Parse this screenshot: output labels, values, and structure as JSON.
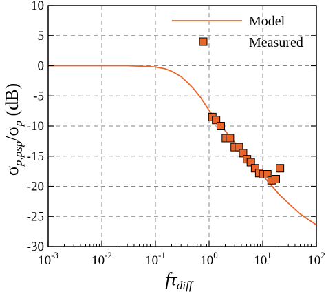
{
  "chart_data": {
    "type": "line",
    "xscale": "log",
    "xlim": [
      0.001,
      100
    ],
    "ylim": [
      -30,
      10
    ],
    "grid": true,
    "legend_position": "top-right",
    "x_ticks": [
      {
        "value": 0.001,
        "base": "10",
        "exp": "-3"
      },
      {
        "value": 0.01,
        "base": "10",
        "exp": "-2"
      },
      {
        "value": 0.1,
        "base": "10",
        "exp": "-1"
      },
      {
        "value": 1,
        "base": "10",
        "exp": "0"
      },
      {
        "value": 10,
        "base": "10",
        "exp": "1"
      },
      {
        "value": 100,
        "base": "10",
        "exp": "2"
      }
    ],
    "y_ticks": [
      {
        "value": 10,
        "label": "10"
      },
      {
        "value": 5,
        "label": "5"
      },
      {
        "value": 0,
        "label": "0"
      },
      {
        "value": -5,
        "label": "-5"
      },
      {
        "value": -10,
        "label": "-10"
      },
      {
        "value": -15,
        "label": "-15"
      },
      {
        "value": -20,
        "label": "-20"
      },
      {
        "value": -25,
        "label": "-25"
      },
      {
        "value": -30,
        "label": "-30"
      }
    ],
    "xlabel": {
      "main": "fτ",
      "sub": "diff"
    },
    "ylabel": {
      "part1": "σ",
      "sub1": "p,psp",
      "part2": "/σ",
      "sub2": "p",
      "unit": " (dB)"
    },
    "series": [
      {
        "name": "Model",
        "kind": "line",
        "color": "#E8662A",
        "x": [
          0.001,
          0.01,
          0.03,
          0.06,
          0.1,
          0.15,
          0.2,
          0.3,
          0.4,
          0.5,
          0.7,
          1,
          1.5,
          2,
          3,
          4,
          5,
          7,
          10,
          15,
          20,
          30,
          50,
          100
        ],
        "y": [
          0,
          0,
          0,
          -0.1,
          -0.2,
          -0.5,
          -0.9,
          -1.8,
          -2.8,
          -3.7,
          -5.3,
          -7.4,
          -9.4,
          -10.8,
          -12.7,
          -14.0,
          -15.0,
          -16.6,
          -18.2,
          -20.0,
          -21.3,
          -22.8,
          -24.6,
          -26.4
        ]
      },
      {
        "name": "Measured",
        "kind": "scatter",
        "color": "#E8662A",
        "x": [
          1.15,
          1.35,
          1.65,
          2.05,
          2.45,
          3.0,
          3.6,
          4.3,
          5.1,
          6.0,
          7.2,
          8.6,
          10.2,
          12.2,
          14.6,
          17.5,
          21.0
        ],
        "y": [
          -8.5,
          -9.0,
          -10.0,
          -12.0,
          -12.0,
          -13.5,
          -13.5,
          -14.5,
          -15.5,
          -16.0,
          -17.0,
          -17.8,
          -18.0,
          -18.0,
          -19.0,
          -18.8,
          -17.0
        ]
      }
    ]
  }
}
